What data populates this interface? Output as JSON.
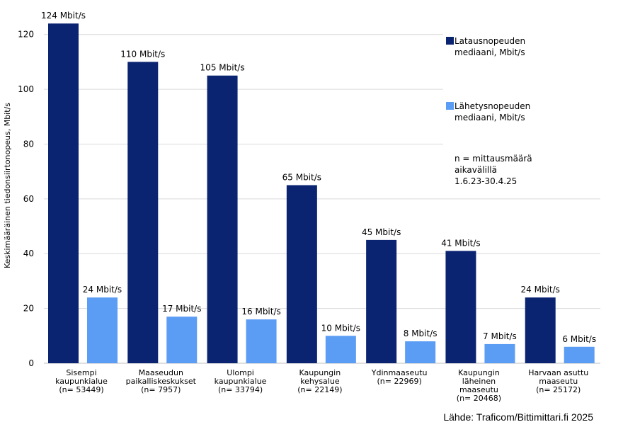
{
  "chart_data": {
    "type": "bar",
    "ylabel": "Keskimääräinen tiedonsiirtonopeus, Mbit/s",
    "ylim": [
      0,
      130
    ],
    "yticks": [
      0,
      20,
      40,
      60,
      80,
      100,
      120
    ],
    "grid": true,
    "legend_position": "right",
    "categories": [
      [
        "Sisempi",
        "kaupunkialue",
        "(n= 53449)"
      ],
      [
        "Maaseudun",
        "paikalliskeskukset",
        "(n= 7957)"
      ],
      [
        "Ulompi",
        "kaupunkialue",
        "(n= 33794)"
      ],
      [
        "Kaupungin",
        "kehysalue",
        "(n= 22149)"
      ],
      [
        "Ydinmaaseutu",
        "(n= 22969)"
      ],
      [
        "Kaupungin",
        "läheinen",
        "maaseutu",
        "(n= 20468)"
      ],
      [
        "Harvaan asuttu",
        "maaseutu",
        "(n= 25172)"
      ]
    ],
    "series": [
      {
        "name": [
          "Latausnopeuden",
          "mediaani, Mbit/s"
        ],
        "color": "#0a2472",
        "values": [
          124,
          110,
          105,
          65,
          45,
          41,
          24
        ],
        "labels": [
          "124 Mbit/s",
          "110 Mbit/s",
          "105 Mbit/s",
          "65 Mbit/s",
          "45 Mbit/s",
          "41 Mbit/s",
          "24 Mbit/s"
        ]
      },
      {
        "name": [
          "Lähetysnopeuden",
          "mediaani, Mbit/s"
        ],
        "color": "#5b9cf5",
        "values": [
          24,
          17,
          16,
          10,
          8,
          7,
          6
        ],
        "labels": [
          "24 Mbit/s",
          "17 Mbit/s",
          "16 Mbit/s",
          "10 Mbit/s",
          "8 Mbit/s",
          "7 Mbit/s",
          "6 Mbit/s"
        ]
      }
    ],
    "annotation": [
      "n = mittausmäärä",
      "aikavälillä",
      "1.6.23-30.4.25"
    ]
  },
  "source": "Lähde: Traficom/Bittimittari.fi 2025"
}
